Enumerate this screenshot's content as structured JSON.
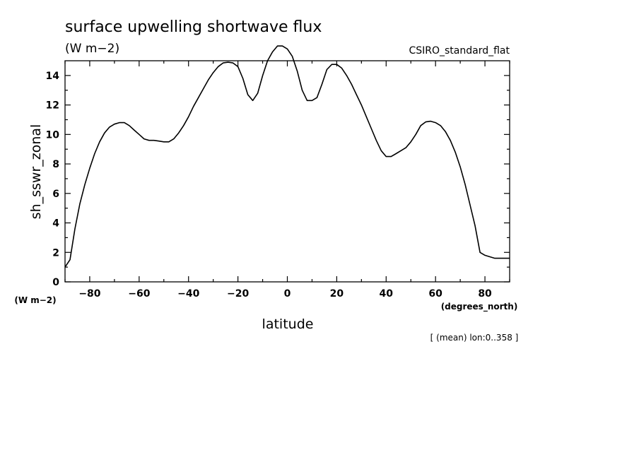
{
  "chart_data": {
    "type": "line",
    "title": "surface upwelling shortwave flux",
    "title_units": "(W m−2)",
    "model": "CSIRO_standard_flat",
    "xlabel": "latitude",
    "ylabel": "sh_sswr_zonal",
    "x_units": "(degrees_north)",
    "y_units": "(W m−2)",
    "annotation": "[ (mean) lon:0..358 ]",
    "xlim": [
      -90,
      90
    ],
    "ylim": [
      0,
      15
    ],
    "xticks": [
      -80,
      -60,
      -40,
      -20,
      0,
      20,
      40,
      60,
      80
    ],
    "yticks": [
      0,
      2,
      4,
      6,
      8,
      10,
      12,
      14
    ],
    "series": [
      {
        "color": "#000000",
        "x": [
          -90,
          -88,
          -86,
          -84,
          -82,
          -80,
          -78,
          -76,
          -74,
          -72,
          -70,
          -68,
          -66,
          -64,
          -62,
          -60,
          -58,
          -56,
          -54,
          -52,
          -50,
          -48,
          -46,
          -44,
          -42,
          -40,
          -38,
          -36,
          -34,
          -32,
          -30,
          -28,
          -26,
          -24,
          -22,
          -20,
          -18,
          -16,
          -14,
          -12,
          -10,
          -8,
          -6,
          -4,
          -2,
          0,
          2,
          4,
          6,
          8,
          10,
          12,
          14,
          16,
          18,
          20,
          22,
          24,
          26,
          28,
          30,
          32,
          34,
          36,
          38,
          40,
          42,
          44,
          46,
          48,
          50,
          52,
          54,
          56,
          58,
          60,
          62,
          64,
          66,
          68,
          70,
          72,
          74,
          76,
          78,
          80,
          82,
          84,
          86,
          88,
          90
        ],
        "y": [
          1.0,
          1.5,
          3.6,
          5.3,
          6.6,
          7.7,
          8.7,
          9.5,
          10.1,
          10.5,
          10.7,
          10.8,
          10.8,
          10.6,
          10.3,
          10.0,
          9.7,
          9.6,
          9.6,
          9.55,
          9.5,
          9.5,
          9.7,
          10.1,
          10.6,
          11.2,
          11.9,
          12.5,
          13.1,
          13.7,
          14.2,
          14.6,
          14.85,
          14.9,
          14.85,
          14.6,
          13.8,
          12.7,
          12.3,
          12.8,
          14.0,
          15.0,
          15.6,
          16.0,
          16.0,
          15.8,
          15.3,
          14.3,
          13.0,
          12.3,
          12.3,
          12.5,
          13.4,
          14.4,
          14.75,
          14.75,
          14.5,
          14.0,
          13.4,
          12.7,
          12.0,
          11.2,
          10.4,
          9.6,
          8.9,
          8.5,
          8.5,
          8.7,
          8.9,
          9.1,
          9.5,
          10.0,
          10.6,
          10.85,
          10.9,
          10.8,
          10.6,
          10.2,
          9.6,
          8.8,
          7.8,
          6.6,
          5.2,
          3.8,
          2.0,
          1.8,
          1.7,
          1.6,
          1.6,
          1.6,
          1.6
        ]
      }
    ]
  }
}
